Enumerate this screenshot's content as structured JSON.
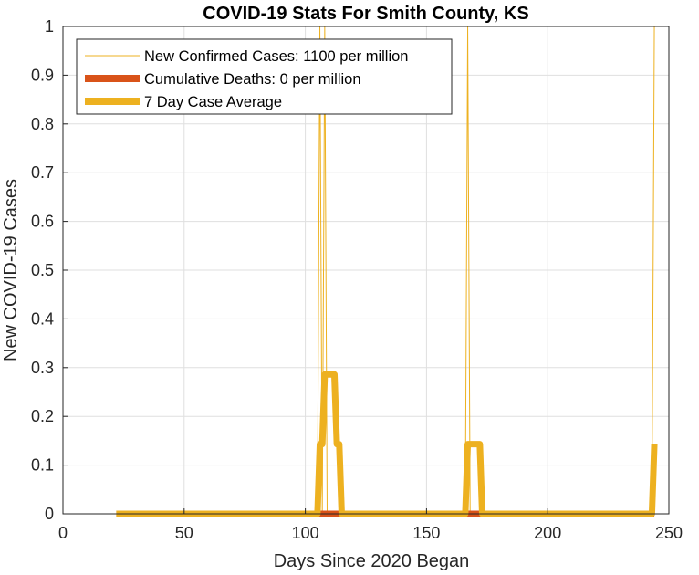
{
  "chart_data": {
    "type": "line",
    "title": "COVID-19 Stats For Smith County, KS",
    "xlabel": "Days Since 2020 Began",
    "ylabel": "New COVID-19 Cases",
    "xlim": [
      0,
      250
    ],
    "ylim": [
      0,
      1
    ],
    "xticks": [
      0,
      50,
      100,
      150,
      200,
      250
    ],
    "xtick_labels": [
      "0",
      "50",
      "100",
      "150",
      "200",
      "250"
    ],
    "yticks": [
      0,
      0.1,
      0.2,
      0.3,
      0.4,
      0.5,
      0.6,
      0.7,
      0.8,
      0.9,
      1
    ],
    "ytick_labels": [
      "0",
      "0.1",
      "0.2",
      "0.3",
      "0.4",
      "0.5",
      "0.6",
      "0.7",
      "0.8",
      "0.9",
      "1"
    ],
    "grid": true,
    "legend_position": "top-left",
    "series": [
      {
        "name": "New Confirmed Cases: 1100 per million",
        "color": "#EDB120",
        "line_width": "thin",
        "x": [
          22,
          105,
          106,
          107,
          108,
          109,
          166,
          167,
          168,
          243,
          244
        ],
        "y": [
          0,
          0,
          1,
          0,
          1,
          0,
          0,
          1,
          0,
          0,
          1
        ]
      },
      {
        "name": "Cumulative Deaths: 0 per million",
        "color": "#D95319",
        "line_width": "thick",
        "x": [
          22,
          244
        ],
        "y": [
          0,
          0
        ]
      },
      {
        "name": "7 Day Case Average",
        "color": "#EDB120",
        "line_width": "thick",
        "x": [
          22,
          105,
          106,
          107,
          108,
          109,
          110,
          111,
          112,
          113,
          114,
          115,
          166,
          167,
          168,
          169,
          170,
          171,
          172,
          173,
          243,
          244
        ],
        "y": [
          0,
          0,
          0.143,
          0.143,
          0.286,
          0.286,
          0.286,
          0.286,
          0.286,
          0.143,
          0.143,
          0,
          0,
          0.143,
          0.143,
          0.143,
          0.143,
          0.143,
          0.143,
          0,
          0,
          0.143
        ]
      }
    ]
  }
}
